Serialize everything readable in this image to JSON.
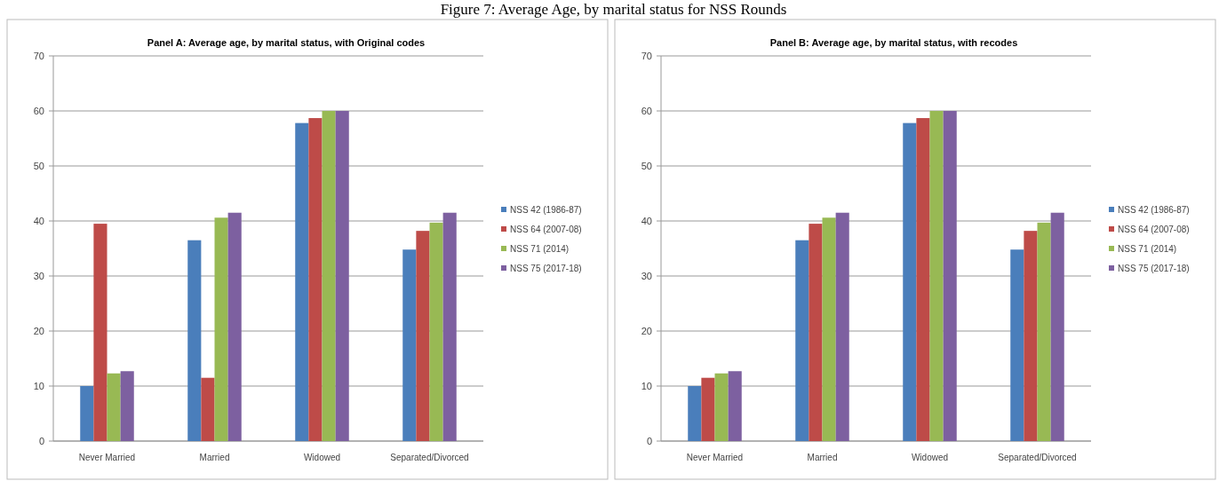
{
  "chart_data": [
    {
      "type": "bar",
      "title": "Panel A: Average age, by marital status, with Original codes",
      "annotations": [
        "Figure 7: Average Age, by marital status for NSS Rounds"
      ],
      "categories": [
        "Never Married",
        "Married",
        "Widowed",
        "Separated/Divorced"
      ],
      "series": [
        {
          "name": "NSS 42 (1986-87)",
          "color": "#4a7ebb",
          "values": [
            10,
            36.5,
            57.8,
            34.8
          ]
        },
        {
          "name": "NSS 64 (2007-08)",
          "color": "#be4b48",
          "values": [
            39.5,
            11.5,
            58.7,
            38.2
          ]
        },
        {
          "name": "NSS 71 (2014)",
          "color": "#98b954",
          "values": [
            12.3,
            40.6,
            60,
            39.7
          ]
        },
        {
          "name": "NSS 75 (2017-18)",
          "color": "#7d60a0",
          "values": [
            12.7,
            41.5,
            60,
            41.5
          ]
        }
      ],
      "ylim": [
        0,
        70
      ],
      "yticks": [
        0,
        10,
        20,
        30,
        40,
        50,
        60,
        70
      ],
      "grid": "y",
      "legend": "right"
    },
    {
      "type": "bar",
      "title": "Panel B: Average age, by marital status, with recodes",
      "categories": [
        "Never Married",
        "Married",
        "Widowed",
        "Separated/Divorced"
      ],
      "series": [
        {
          "name": "NSS 42 (1986-87)",
          "color": "#4a7ebb",
          "values": [
            10,
            36.5,
            57.8,
            34.8
          ]
        },
        {
          "name": "NSS 64 (2007-08)",
          "color": "#be4b48",
          "values": [
            11.5,
            39.5,
            58.7,
            38.2
          ]
        },
        {
          "name": "NSS 71 (2014)",
          "color": "#98b954",
          "values": [
            12.3,
            40.6,
            60,
            39.7
          ]
        },
        {
          "name": "NSS 75 (2017-18)",
          "color": "#7d60a0",
          "values": [
            12.7,
            41.5,
            60,
            41.5
          ]
        }
      ],
      "ylim": [
        0,
        70
      ],
      "yticks": [
        0,
        10,
        20,
        30,
        40,
        50,
        60,
        70
      ],
      "grid": "y",
      "legend": "right"
    }
  ]
}
